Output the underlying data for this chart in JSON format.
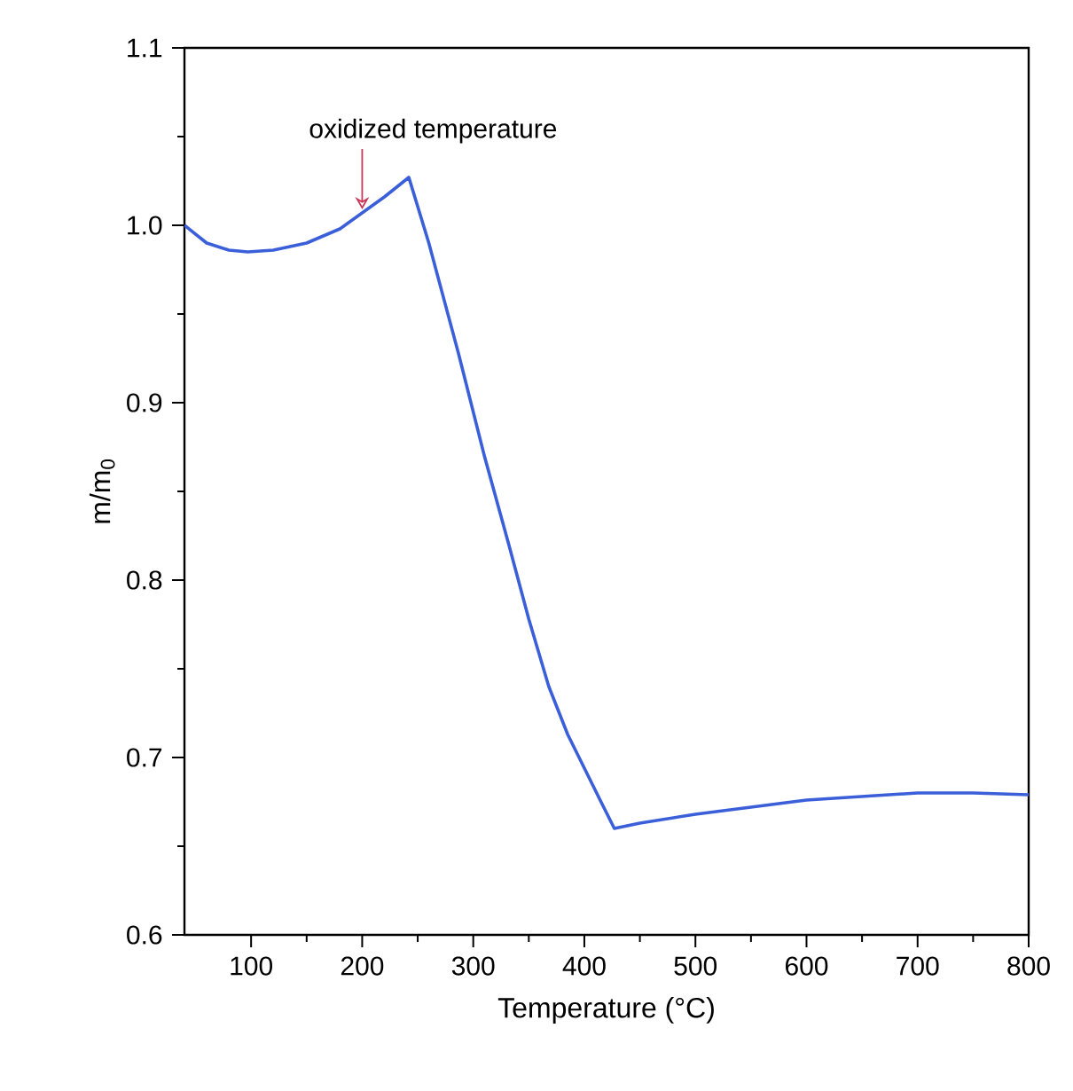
{
  "chart_data": {
    "type": "line",
    "xlabel": "Temperature (°C)",
    "ylabel": "m/m$_{0}$",
    "x": [
      40,
      60,
      80,
      97,
      120,
      150,
      180,
      200,
      220,
      242,
      260,
      287,
      310,
      332,
      350,
      368,
      385,
      400,
      415,
      427,
      450,
      500,
      550,
      600,
      650,
      700,
      750,
      800
    ],
    "series": [
      {
        "color": "#3b5fd9",
        "values": [
          1.0,
          0.99,
          0.986,
          0.985,
          0.986,
          0.99,
          0.998,
          1.007,
          1.016,
          1.027,
          0.99,
          0.927,
          0.87,
          0.82,
          0.778,
          0.74,
          0.713,
          0.694,
          0.675,
          0.66,
          0.663,
          0.668,
          0.672,
          0.676,
          0.678,
          0.68,
          0.68,
          0.679
        ]
      }
    ],
    "xlim": [
      40,
      800
    ],
    "ylim": [
      0.6,
      1.1
    ],
    "xticks": [
      100,
      200,
      300,
      400,
      500,
      600,
      700,
      800
    ],
    "yticks": [
      0.6,
      0.7,
      0.8,
      0.9,
      {
        "value": 1.0,
        "label": "1.0"
      },
      1.1
    ],
    "annotations": [
      {
        "text": "oxidized temperature",
        "x": 200,
        "y": 1.009
      }
    ],
    "grid": false,
    "marker": "none",
    "line_style": "solid"
  }
}
